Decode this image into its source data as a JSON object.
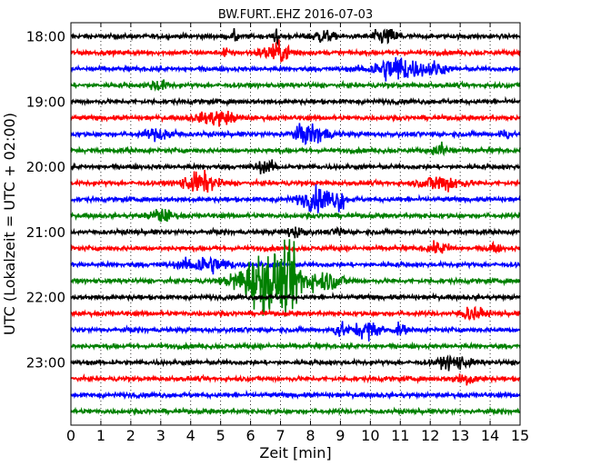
{
  "chart_data": {
    "type": "line",
    "title": "BW.FURT..EHZ 2016-07-03",
    "xlabel": "Zeit  [min]",
    "ylabel": "UTC (Lokalzeit = UTC + 02:00)",
    "xlim": [
      0,
      15
    ],
    "x_ticks": [
      "0",
      "1",
      "2",
      "3",
      "4",
      "5",
      "6",
      "7",
      "8",
      "9",
      "10",
      "11",
      "12",
      "13",
      "14",
      "15"
    ],
    "y_ticks": [
      {
        "row": 0,
        "label": "18:00"
      },
      {
        "row": 4,
        "label": "19:00"
      },
      {
        "row": 8,
        "label": "20:00"
      },
      {
        "row": 12,
        "label": "21:00"
      },
      {
        "row": 16,
        "label": "22:00"
      },
      {
        "row": 20,
        "label": "23:00"
      }
    ],
    "grid": {
      "x": true,
      "y": false,
      "style": "dotted"
    },
    "trace_colors": [
      "#000000",
      "#ff0000",
      "#0000ff",
      "#008000"
    ],
    "trace_start_times": [
      "18:00",
      "18:15",
      "18:30",
      "18:45",
      "19:00",
      "19:15",
      "19:30",
      "19:45",
      "20:00",
      "20:15",
      "20:30",
      "20:45",
      "21:00",
      "21:15",
      "21:30",
      "21:45",
      "22:00",
      "22:15",
      "22:30",
      "22:45",
      "23:00",
      "23:15",
      "23:30",
      "23:45"
    ],
    "noise_level": 0.15,
    "events": [
      {
        "row": 0,
        "t": 6.85,
        "amp": 1.3,
        "dur": 0.08
      },
      {
        "row": 0,
        "t": 5.5,
        "amp": 0.45,
        "dur": 0.15
      },
      {
        "row": 0,
        "t": 8.4,
        "amp": 0.4,
        "dur": 0.6
      },
      {
        "row": 0,
        "t": 10.5,
        "amp": 0.5,
        "dur": 0.7
      },
      {
        "row": 1,
        "t": 5.15,
        "amp": 0.7,
        "dur": 0.1
      },
      {
        "row": 1,
        "t": 6.9,
        "amp": 0.6,
        "dur": 0.9
      },
      {
        "row": 2,
        "t": 10.9,
        "amp": 0.9,
        "dur": 1.3
      },
      {
        "row": 2,
        "t": 12.2,
        "amp": 0.4,
        "dur": 0.5
      },
      {
        "row": 3,
        "t": 2.9,
        "amp": 0.35,
        "dur": 0.5
      },
      {
        "row": 5,
        "t": 4.9,
        "amp": 0.5,
        "dur": 1.0
      },
      {
        "row": 6,
        "t": 3.0,
        "amp": 0.4,
        "dur": 0.8
      },
      {
        "row": 6,
        "t": 8.0,
        "amp": 0.7,
        "dur": 0.9
      },
      {
        "row": 6,
        "t": 14.5,
        "amp": 0.3,
        "dur": 0.3
      },
      {
        "row": 7,
        "t": 12.4,
        "amp": 0.5,
        "dur": 0.4
      },
      {
        "row": 8,
        "t": 6.5,
        "amp": 0.35,
        "dur": 0.6
      },
      {
        "row": 9,
        "t": 4.3,
        "amp": 0.7,
        "dur": 0.9
      },
      {
        "row": 9,
        "t": 12.4,
        "amp": 0.6,
        "dur": 1.0
      },
      {
        "row": 10,
        "t": 8.3,
        "amp": 0.8,
        "dur": 1.0
      },
      {
        "row": 10,
        "t": 9.0,
        "amp": 0.6,
        "dur": 0.2
      },
      {
        "row": 11,
        "t": 3.0,
        "amp": 0.45,
        "dur": 0.6
      },
      {
        "row": 12,
        "t": 7.5,
        "amp": 0.35,
        "dur": 0.5
      },
      {
        "row": 12,
        "t": 9.0,
        "amp": 0.3,
        "dur": 0.3
      },
      {
        "row": 13,
        "t": 12.3,
        "amp": 0.35,
        "dur": 0.6
      },
      {
        "row": 13,
        "t": 14.1,
        "amp": 0.35,
        "dur": 0.3
      },
      {
        "row": 14,
        "t": 4.5,
        "amp": 0.6,
        "dur": 1.2
      },
      {
        "row": 15,
        "t": 6.5,
        "amp": 2.1,
        "dur": 1.4
      },
      {
        "row": 15,
        "t": 7.4,
        "amp": 1.4,
        "dur": 0.6
      },
      {
        "row": 15,
        "t": 8.5,
        "amp": 0.6,
        "dur": 1.0
      },
      {
        "row": 17,
        "t": 13.4,
        "amp": 0.45,
        "dur": 0.6
      },
      {
        "row": 18,
        "t": 9.0,
        "amp": 0.6,
        "dur": 0.3
      },
      {
        "row": 18,
        "t": 9.9,
        "amp": 0.6,
        "dur": 0.7
      },
      {
        "row": 18,
        "t": 11.0,
        "amp": 0.4,
        "dur": 0.3
      },
      {
        "row": 20,
        "t": 12.8,
        "amp": 0.45,
        "dur": 0.8
      },
      {
        "row": 21,
        "t": 13.2,
        "amp": 0.4,
        "dur": 0.6
      }
    ]
  }
}
